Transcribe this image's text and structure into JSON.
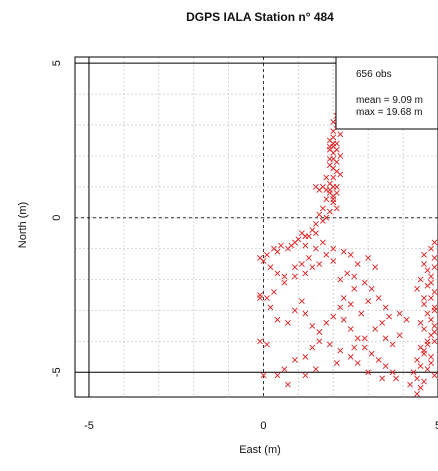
{
  "chart_data": {
    "type": "scatter",
    "title": "DGPS IALA Station n° 484",
    "xlabel": "East (m)",
    "ylabel": "North (m)",
    "xlim": [
      -5.4,
      5.0
    ],
    "ylim": [
      -5.8,
      5.2
    ],
    "x_ticks": [
      -5,
      0,
      5
    ],
    "x_tick_labels": [
      "-5",
      "0",
      "5"
    ],
    "y_ticks": [
      5,
      0,
      -5
    ],
    "y_tick_labels": [
      "5",
      "0",
      "-5"
    ],
    "grid": true,
    "reference_lines": {
      "x": [
        0
      ],
      "y": [
        0
      ]
    },
    "frame_lines": {
      "x": [
        -5,
        5
      ],
      "y": [
        5,
        -5
      ]
    },
    "legend_position": "top-right",
    "legend": {
      "count_text": "656 obs",
      "mean_text": "mean = 9.09 m",
      "max_text": "max = 19.68 m"
    },
    "marker": "x",
    "color": "#e02020",
    "series": [
      {
        "values": [
          [
            2.1,
            3.3
          ],
          [
            2.0,
            3.1
          ],
          [
            2.1,
            3.0
          ],
          [
            2.0,
            2.8
          ],
          [
            2.2,
            2.7
          ],
          [
            2.0,
            2.6
          ],
          [
            1.9,
            2.5
          ],
          [
            2.1,
            2.4
          ],
          [
            2.0,
            2.4
          ],
          [
            1.9,
            2.3
          ],
          [
            2.0,
            2.3
          ],
          [
            2.1,
            2.2
          ],
          [
            1.9,
            2.2
          ],
          [
            2.0,
            2.1
          ],
          [
            2.2,
            2.0
          ],
          [
            2.0,
            1.9
          ],
          [
            1.9,
            1.9
          ],
          [
            2.1,
            1.8
          ],
          [
            1.9,
            1.7
          ],
          [
            2.0,
            1.6
          ],
          [
            2.1,
            1.5
          ],
          [
            2.2,
            1.4
          ],
          [
            2.0,
            1.3
          ],
          [
            1.8,
            1.3
          ],
          [
            1.9,
            1.1
          ],
          [
            2.1,
            1.0
          ],
          [
            2.0,
            1.0
          ],
          [
            1.9,
            0.9
          ],
          [
            2.1,
            0.8
          ],
          [
            2.0,
            0.7
          ],
          [
            1.8,
            0.6
          ],
          [
            2.0,
            0.5
          ],
          [
            2.1,
            0.3
          ],
          [
            1.8,
            0.9
          ],
          [
            1.7,
            1.0
          ],
          [
            1.6,
            0.9
          ],
          [
            1.5,
            1.0
          ],
          [
            1.7,
            0.3
          ],
          [
            1.6,
            0.1
          ],
          [
            1.8,
            0.0
          ],
          [
            1.9,
            0.2
          ],
          [
            1.5,
            -0.2
          ],
          [
            1.4,
            -0.4
          ],
          [
            1.3,
            -0.6
          ],
          [
            1.2,
            -0.6
          ],
          [
            1.1,
            -0.5
          ],
          [
            1.0,
            -0.7
          ],
          [
            0.9,
            -0.8
          ],
          [
            0.8,
            -0.9
          ],
          [
            0.7,
            -1.0
          ],
          [
            0.5,
            -0.9
          ],
          [
            0.4,
            -1.1
          ],
          [
            0.3,
            -1.0
          ],
          [
            0.1,
            -1.2
          ],
          [
            0.0,
            -1.4
          ],
          [
            -0.1,
            -1.3
          ],
          [
            0.2,
            -1.6
          ],
          [
            0.4,
            -1.8
          ],
          [
            0.6,
            -1.9
          ],
          [
            0.9,
            -1.9
          ],
          [
            1.2,
            -1.8
          ],
          [
            1.4,
            -1.6
          ],
          [
            1.6,
            -1.5
          ],
          [
            1.8,
            -1.2
          ],
          [
            2.0,
            -1.0
          ],
          [
            1.7,
            -0.8
          ],
          [
            1.5,
            -1.0
          ],
          [
            1.3,
            -1.3
          ],
          [
            1.1,
            -1.5
          ],
          [
            0.9,
            -1.6
          ],
          [
            0.6,
            -2.1
          ],
          [
            0.3,
            -2.4
          ],
          [
            0.1,
            -2.6
          ],
          [
            -0.1,
            -2.5
          ],
          [
            0.2,
            -2.9
          ],
          [
            0.4,
            -3.3
          ],
          [
            0.7,
            -3.4
          ],
          [
            0.9,
            -3.0
          ],
          [
            1.1,
            -2.7
          ],
          [
            1.2,
            -3.1
          ],
          [
            1.4,
            -3.5
          ],
          [
            1.6,
            -3.7
          ],
          [
            1.8,
            -3.4
          ],
          [
            2.0,
            -3.2
          ],
          [
            2.2,
            -2.9
          ],
          [
            2.3,
            -3.3
          ],
          [
            2.5,
            -3.6
          ],
          [
            2.7,
            -3.9
          ],
          [
            2.9,
            -4.2
          ],
          [
            3.1,
            -4.4
          ],
          [
            3.3,
            -4.6
          ],
          [
            3.5,
            -4.8
          ],
          [
            3.7,
            -5.0
          ],
          [
            3.8,
            -5.2
          ],
          [
            3.4,
            -5.2
          ],
          [
            3.0,
            -5.0
          ],
          [
            2.7,
            -4.7
          ],
          [
            2.5,
            -4.5
          ],
          [
            2.2,
            -4.3
          ],
          [
            1.9,
            -4.1
          ],
          [
            1.6,
            -4.0
          ],
          [
            1.4,
            -4.2
          ],
          [
            1.2,
            -4.5
          ],
          [
            0.9,
            -4.6
          ],
          [
            0.6,
            -4.9
          ],
          [
            0.4,
            -5.1
          ],
          [
            0.7,
            -5.4
          ],
          [
            1.2,
            -5.1
          ],
          [
            1.5,
            -4.9
          ],
          [
            2.1,
            -4.7
          ],
          [
            2.6,
            -4.2
          ],
          [
            2.9,
            -3.9
          ],
          [
            3.2,
            -3.6
          ],
          [
            3.4,
            -3.4
          ],
          [
            3.6,
            -3.2
          ],
          [
            3.9,
            -3.1
          ],
          [
            4.1,
            -3.3
          ],
          [
            3.9,
            -3.8
          ],
          [
            3.7,
            -4.1
          ],
          [
            3.5,
            -3.9
          ],
          [
            2.8,
            -3.1
          ],
          [
            2.5,
            -2.8
          ],
          [
            2.3,
            -2.6
          ],
          [
            2.6,
            -2.3
          ],
          [
            2.9,
            -2.1
          ],
          [
            3.1,
            -2.3
          ],
          [
            3.3,
            -2.6
          ],
          [
            3.5,
            -2.9
          ],
          [
            2.2,
            -2.0
          ],
          [
            2.4,
            -1.8
          ],
          [
            2.7,
            -1.5
          ],
          [
            2.5,
            -1.2
          ],
          [
            2.0,
            -1.4
          ],
          [
            3.0,
            -1.3
          ],
          [
            3.2,
            -1.6
          ],
          [
            4.6,
            -1.5
          ],
          [
            4.7,
            -1.7
          ],
          [
            4.8,
            -1.9
          ],
          [
            4.9,
            -1.6
          ],
          [
            4.5,
            -2.0
          ],
          [
            4.7,
            -2.2
          ],
          [
            4.9,
            -2.4
          ],
          [
            4.8,
            -2.6
          ],
          [
            4.6,
            -2.8
          ],
          [
            4.9,
            -2.9
          ],
          [
            4.7,
            -3.1
          ],
          [
            4.8,
            -3.3
          ],
          [
            4.9,
            -3.5
          ],
          [
            4.6,
            -3.6
          ],
          [
            4.8,
            -3.8
          ],
          [
            4.9,
            -4.0
          ],
          [
            4.7,
            -4.1
          ],
          [
            4.5,
            -4.2
          ],
          [
            4.6,
            -4.4
          ],
          [
            4.8,
            -4.5
          ],
          [
            4.4,
            -4.6
          ],
          [
            4.5,
            -4.8
          ],
          [
            4.7,
            -4.9
          ],
          [
            4.3,
            -5.0
          ],
          [
            4.4,
            -5.2
          ],
          [
            4.6,
            -5.3
          ],
          [
            4.2,
            -5.4
          ],
          [
            4.5,
            -5.5
          ],
          [
            4.4,
            -5.7
          ],
          [
            4.9,
            -5.1
          ],
          [
            4.8,
            -4.7
          ],
          [
            4.6,
            -4.3
          ],
          [
            4.7,
            -4.0
          ],
          [
            4.9,
            -3.7
          ],
          [
            4.5,
            -3.4
          ],
          [
            4.9,
            -3.0
          ],
          [
            4.6,
            -2.6
          ],
          [
            4.8,
            -2.1
          ],
          [
            4.9,
            -1.3
          ],
          [
            4.9,
            -0.8
          ],
          [
            4.4,
            -2.3
          ],
          [
            4.6,
            -1.2
          ],
          [
            4.8,
            -1.0
          ],
          [
            -0.1,
            -4.0
          ],
          [
            0.1,
            -4.1
          ],
          [
            -0.1,
            -2.6
          ],
          [
            0.0,
            -5.1
          ],
          [
            1.9,
            0.8
          ],
          [
            2.0,
            0.6
          ],
          [
            1.7,
            -0.1
          ],
          [
            1.5,
            -0.5
          ],
          [
            1.2,
            -0.9
          ],
          [
            2.3,
            -1.1
          ],
          [
            2.6,
            -1.9
          ],
          [
            3.0,
            -2.7
          ]
        ]
      }
    ]
  }
}
